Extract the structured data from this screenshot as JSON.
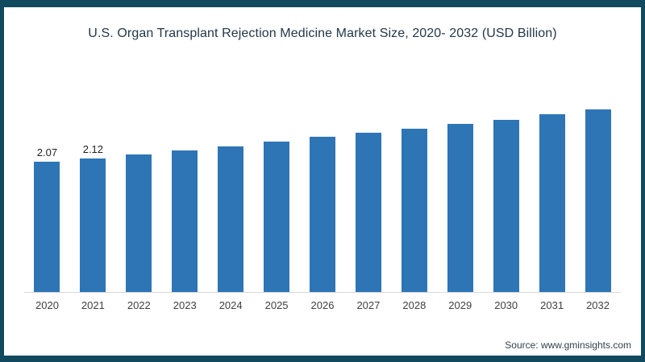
{
  "frame": {
    "border_color": "#114a5e",
    "background_color": "#ffffff"
  },
  "chart_data": {
    "type": "bar",
    "title": "U.S. Organ Transplant Rejection Medicine Market Size, 2020- 2032 (USD Billion)",
    "categories": [
      "2020",
      "2021",
      "2022",
      "2023",
      "2024",
      "2025",
      "2026",
      "2027",
      "2028",
      "2029",
      "2030",
      "2031",
      "2032"
    ],
    "values": [
      2.07,
      2.12,
      2.18,
      2.25,
      2.31,
      2.39,
      2.46,
      2.52,
      2.59,
      2.67,
      2.73,
      2.82,
      2.9
    ],
    "data_labels": [
      "2.07",
      "2.12",
      "",
      "",
      "",
      "",
      "",
      "",
      "",
      "",
      "",
      "",
      ""
    ],
    "xlabel": "",
    "ylabel": "",
    "ylim": [
      0,
      3.0
    ],
    "grid": false,
    "legend": "none",
    "bar_color": "#2e75b6",
    "axis_line_color": "#d9d9d9",
    "title_color": "#22384a",
    "tick_label_color": "#404040",
    "data_label_color": "#1f1f1f"
  },
  "source": {
    "label": "Source: www.gminsights.com"
  }
}
